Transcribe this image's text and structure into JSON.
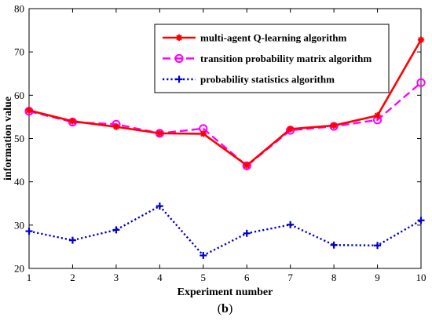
{
  "chart_data": {
    "type": "line",
    "x": [
      1,
      2,
      3,
      4,
      5,
      6,
      7,
      8,
      9,
      10
    ],
    "xlim": [
      1,
      10
    ],
    "ylim": [
      20,
      80
    ],
    "xticks": [
      "1",
      "2",
      "3",
      "4",
      "5",
      "6",
      "7",
      "8",
      "9",
      "10"
    ],
    "yticks": [
      "20",
      "30",
      "40",
      "50",
      "60",
      "70",
      "80"
    ],
    "xlabel": "Experiment number",
    "ylabel": "information value",
    "caption_prefix": "(",
    "caption_letter": "b",
    "caption_suffix": ")",
    "grid": false,
    "legend_position": "top-right",
    "series": [
      {
        "name": "multi-agent Q-learning algorithm",
        "values": [
          56.5,
          54,
          52.7,
          51.2,
          51.1,
          43.8,
          52.2,
          53,
          55.3,
          72.8
        ],
        "color": "#ff0000",
        "line_style": "solid",
        "marker": "asterisk"
      },
      {
        "name": "transition probability matrix algorithm",
        "values": [
          56.3,
          53.8,
          53.3,
          51.2,
          52.3,
          43.7,
          51.9,
          52.8,
          54.3,
          62.9
        ],
        "color": "#ff00ff",
        "line_style": "dashed",
        "marker": "circle"
      },
      {
        "name": "probability statistics algorithm",
        "values": [
          28.6,
          26.5,
          28.9,
          34.4,
          23.0,
          28.1,
          30.1,
          25.4,
          25.3,
          31.1
        ],
        "color": "#0000cc",
        "line_style": "dotted",
        "marker": "plus"
      }
    ]
  }
}
